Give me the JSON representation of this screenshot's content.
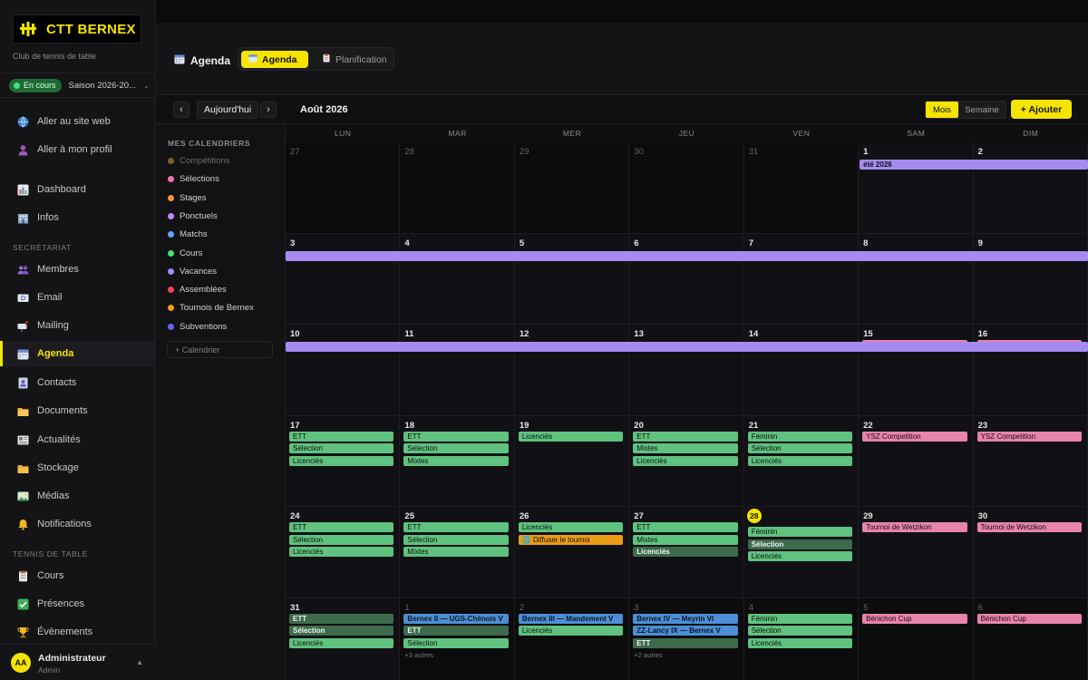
{
  "brand": {
    "name": "CTT BERNEX",
    "subtitle": "Club de tennis de table",
    "logo_icon": "paddle-logo"
  },
  "season": {
    "status": "En cours",
    "label": "Saison 2026-20..."
  },
  "nav": {
    "top": [
      {
        "label": "Aller au site web",
        "icon": "globe-icon"
      },
      {
        "label": "Aller à mon profil",
        "icon": "user-icon"
      }
    ],
    "main": [
      {
        "label": "Dashboard",
        "icon": "chart-icon"
      },
      {
        "label": "Infos",
        "icon": "building-icon"
      }
    ],
    "secretariat_title": "SECRÉTARIAT",
    "secretariat": [
      {
        "label": "Membres",
        "icon": "people-icon"
      },
      {
        "label": "Email",
        "icon": "email-icon"
      },
      {
        "label": "Mailing",
        "icon": "mailbox-icon"
      },
      {
        "label": "Agenda",
        "icon": "calendar-icon",
        "active": true
      },
      {
        "label": "Contacts",
        "icon": "contacts-icon"
      },
      {
        "label": "Documents",
        "icon": "folder-icon"
      },
      {
        "label": "Actualités",
        "icon": "newspaper-icon"
      },
      {
        "label": "Stockage",
        "icon": "storage-folder-icon"
      },
      {
        "label": "Médias",
        "icon": "image-icon"
      },
      {
        "label": "Notifications",
        "icon": "bell-icon"
      }
    ],
    "tennis_title": "TENNIS DE TABLE",
    "tennis": [
      {
        "label": "Cours",
        "icon": "clipboard-icon"
      },
      {
        "label": "Présences",
        "icon": "check-icon"
      },
      {
        "label": "Évènements",
        "icon": "trophy-icon"
      }
    ]
  },
  "user": {
    "initials": "AA",
    "name": "Administrateur",
    "role": "Admin"
  },
  "header": {
    "title": "Agenda",
    "tabs": [
      {
        "label": "Agenda",
        "active": true
      },
      {
        "label": "Planification",
        "active": false
      }
    ]
  },
  "toolbar": {
    "prev": "‹",
    "today": "Aujourd'hui",
    "next": "›",
    "month": "Août 2026",
    "view_month": "Mois",
    "view_week": "Semaine",
    "add": "+ Ajouter"
  },
  "calendars": {
    "title": "MES CALENDRIERS",
    "items": [
      {
        "label": "Compétitions",
        "color": "#7a5e2e",
        "dim": true
      },
      {
        "label": "Sélections",
        "color": "#f472b6"
      },
      {
        "label": "Stages",
        "color": "#fb923c"
      },
      {
        "label": "Ponctuels",
        "color": "#c084fc"
      },
      {
        "label": "Matchs",
        "color": "#60a5fa"
      },
      {
        "label": "Cours",
        "color": "#4ade80"
      },
      {
        "label": "Vacances",
        "color": "#a78bfa"
      },
      {
        "label": "Assemblées",
        "color": "#f43f5e"
      },
      {
        "label": "Tournois de Bernex",
        "color": "#f59e0b"
      },
      {
        "label": "Subventions",
        "color": "#6366f1"
      }
    ],
    "add_label": "+ Calendrier"
  },
  "colors": {
    "green": "#5fc27e",
    "green_dark": "#3d6b4c",
    "pink": "#e883ac",
    "blue": "#4c8fd6",
    "orange": "#eb9c15",
    "purple": "#a58af0"
  },
  "weekdays": [
    "LUN",
    "MAR",
    "MER",
    "JEU",
    "VEN",
    "SAM",
    "DIM"
  ],
  "weeks": [
    {
      "days": [
        {
          "n": "27",
          "out": true
        },
        {
          "n": "28",
          "out": true
        },
        {
          "n": "29",
          "out": true
        },
        {
          "n": "30",
          "out": true
        },
        {
          "n": "31",
          "out": true
        },
        {
          "n": "1"
        },
        {
          "n": "2"
        }
      ],
      "bars": [
        {
          "label": "été 2026",
          "start": 5,
          "end": 6,
          "color": "purple"
        }
      ]
    },
    {
      "days": [
        {
          "n": "3"
        },
        {
          "n": "4"
        },
        {
          "n": "5"
        },
        {
          "n": "6"
        },
        {
          "n": "7"
        },
        {
          "n": "8"
        },
        {
          "n": "9"
        }
      ],
      "bars": [
        {
          "label": "",
          "start": 0,
          "end": 6,
          "color": "purple"
        }
      ]
    },
    {
      "days": [
        {
          "n": "10"
        },
        {
          "n": "11"
        },
        {
          "n": "12"
        },
        {
          "n": "13"
        },
        {
          "n": "14"
        },
        {
          "n": "15",
          "events": [
            {
              "label": "Wankdorf Cup",
              "color": "pink"
            }
          ]
        },
        {
          "n": "16",
          "events": [
            {
              "label": "Wankdorf Cup",
              "color": "pink"
            }
          ]
        }
      ],
      "bars": [
        {
          "label": "",
          "start": 0,
          "end": 6,
          "color": "purple"
        }
      ]
    },
    {
      "days": [
        {
          "n": "17",
          "events": [
            {
              "label": "ETT",
              "color": "green"
            },
            {
              "label": "Sélection",
              "color": "green"
            },
            {
              "label": "Licenciés",
              "color": "green"
            }
          ]
        },
        {
          "n": "18",
          "events": [
            {
              "label": "ETT",
              "color": "green"
            },
            {
              "label": "Sélection",
              "color": "green"
            },
            {
              "label": "Mixtes",
              "color": "green"
            }
          ]
        },
        {
          "n": "19",
          "events": [
            {
              "label": "Licenciés",
              "color": "green"
            }
          ]
        },
        {
          "n": "20",
          "events": [
            {
              "label": "ETT",
              "color": "green"
            },
            {
              "label": "Mixtes",
              "color": "green"
            },
            {
              "label": "Licenciés",
              "color": "green"
            }
          ]
        },
        {
          "n": "21",
          "events": [
            {
              "label": "Féminin",
              "color": "green"
            },
            {
              "label": "Sélection",
              "color": "green"
            },
            {
              "label": "Licenciés",
              "color": "green"
            }
          ]
        },
        {
          "n": "22",
          "events": [
            {
              "label": "YSZ Competition",
              "color": "pink"
            }
          ]
        },
        {
          "n": "23",
          "events": [
            {
              "label": "YSZ Competition",
              "color": "pink"
            }
          ]
        }
      ]
    },
    {
      "days": [
        {
          "n": "24",
          "events": [
            {
              "label": "ETT",
              "color": "green"
            },
            {
              "label": "Sélection",
              "color": "green"
            },
            {
              "label": "Licenciés",
              "color": "green"
            }
          ]
        },
        {
          "n": "25",
          "events": [
            {
              "label": "ETT",
              "color": "green"
            },
            {
              "label": "Sélection",
              "color": "green"
            },
            {
              "label": "Mixtes",
              "color": "green"
            }
          ]
        },
        {
          "n": "26",
          "events": [
            {
              "label": "Licenciés",
              "color": "green"
            },
            {
              "label": "🌐 Diffuser le tournoi",
              "color": "orange"
            }
          ]
        },
        {
          "n": "27",
          "events": [
            {
              "label": "ETT",
              "color": "green"
            },
            {
              "label": "Mixtes",
              "color": "green"
            },
            {
              "label": "Licenciés",
              "color": "green_dark"
            }
          ]
        },
        {
          "n": "28",
          "today": true,
          "events": [
            {
              "label": "Féminin",
              "color": "green"
            },
            {
              "label": "Sélection",
              "color": "green_dark"
            },
            {
              "label": "Licenciés",
              "color": "green"
            }
          ]
        },
        {
          "n": "29",
          "events": [
            {
              "label": "Tournoi de Wetzikon",
              "color": "pink"
            }
          ]
        },
        {
          "n": "30",
          "events": [
            {
              "label": "Tournoi de Wetzikon",
              "color": "pink"
            }
          ]
        }
      ]
    },
    {
      "days": [
        {
          "n": "31",
          "events": [
            {
              "label": "ETT",
              "color": "green_dark"
            },
            {
              "label": "Sélection",
              "color": "green_dark"
            },
            {
              "label": "Licenciés",
              "color": "green"
            }
          ]
        },
        {
          "n": "1",
          "out": true,
          "events": [
            {
              "label": "Bernex II — UGS-Chênois V",
              "color": "blue"
            },
            {
              "label": "ETT",
              "color": "green_dark"
            },
            {
              "label": "Sélection",
              "color": "green"
            }
          ],
          "more": "+3 autres"
        },
        {
          "n": "2",
          "out": true,
          "events": [
            {
              "label": "Bernex III — Mandement V",
              "color": "blue"
            },
            {
              "label": "Licenciés",
              "color": "green"
            }
          ]
        },
        {
          "n": "3",
          "out": true,
          "events": [
            {
              "label": "Bernex IV — Meyrin VI",
              "color": "blue"
            },
            {
              "label": "ZZ-Lancy IX — Bernex V",
              "color": "blue"
            },
            {
              "label": "ETT",
              "color": "green_dark"
            }
          ],
          "more": "+2 autres"
        },
        {
          "n": "4",
          "out": true,
          "events": [
            {
              "label": "Féminin",
              "color": "green"
            },
            {
              "label": "Sélection",
              "color": "green"
            },
            {
              "label": "Licenciés",
              "color": "green"
            }
          ]
        },
        {
          "n": "5",
          "out": true,
          "events": [
            {
              "label": "Bénichon Cup",
              "color": "pink"
            }
          ]
        },
        {
          "n": "6",
          "out": true,
          "events": [
            {
              "label": "Bénichon Cup",
              "color": "pink"
            }
          ]
        }
      ]
    }
  ]
}
